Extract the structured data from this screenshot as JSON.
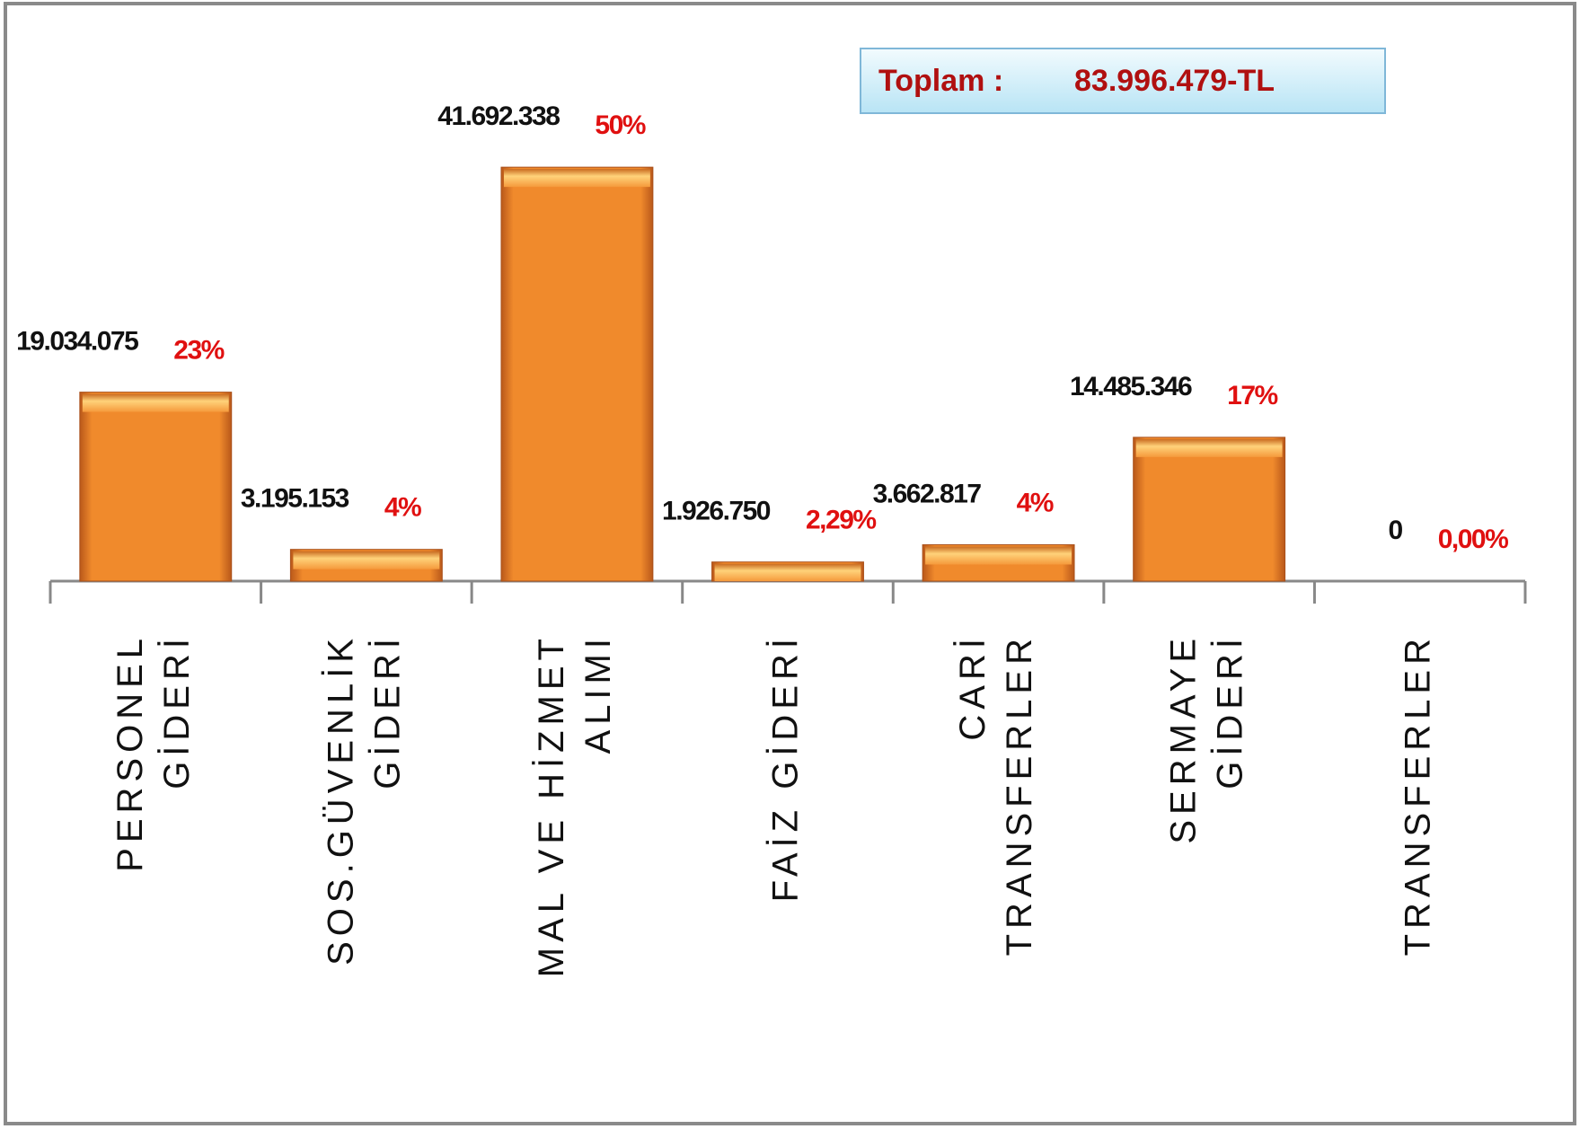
{
  "chart_data": {
    "type": "bar",
    "annotation": {
      "label": "Toplam :",
      "total": "83.996.479-TL"
    },
    "categories": [
      [
        "PERSONEL",
        "GİDERİ"
      ],
      [
        "SOS.GÜVENLİK",
        "GİDERİ"
      ],
      [
        "MAL VE HİZMET",
        "ALIMI"
      ],
      [
        "FAİZ GİDERİ"
      ],
      [
        "CARİ",
        "TRANSFERLER"
      ],
      [
        "SERMAYE",
        "GİDERİ"
      ],
      [
        "TRANSFERLER"
      ]
    ],
    "values": [
      19034075,
      3195153,
      41692338,
      1926750,
      3662817,
      14485346,
      0
    ],
    "value_labels": [
      "19.034.075",
      "3.195.153",
      "41.692.338",
      "1.926.750",
      "3.662.817",
      "14.485.346",
      "0"
    ],
    "percents": [
      23,
      4,
      50,
      2.29,
      4,
      17,
      0
    ],
    "percent_labels": [
      "23%",
      "4%",
      "50%",
      "2,29%",
      "4%",
      "17%",
      "0,00%"
    ],
    "color": "#f08a2c",
    "ylim": [
      0,
      48400000
    ],
    "grid": false
  }
}
